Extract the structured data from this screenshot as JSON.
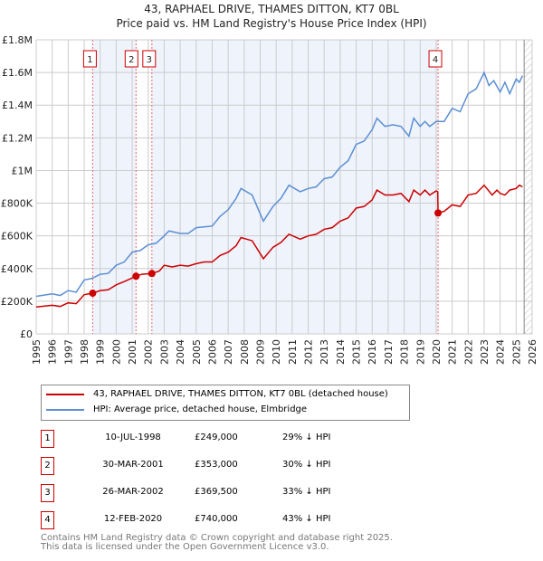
{
  "title_line1": "43, RAPHAEL DRIVE, THAMES DITTON, KT7 0BL",
  "title_line2": "Price paid vs. HM Land Registry's House Price Index (HPI)",
  "chart_data": {
    "type": "line",
    "title": "43, RAPHAEL DRIVE, THAMES DITTON, KT7 0BL — Price paid vs. HM Land Registry's House Price Index (HPI)",
    "xlim": [
      1995,
      2026
    ],
    "ylim": [
      0,
      1800000
    ],
    "yticks": [
      0,
      200000,
      400000,
      600000,
      800000,
      1000000,
      1200000,
      1400000,
      1600000,
      1800000
    ],
    "ytick_labels": [
      "£0",
      "£200K",
      "£400K",
      "£600K",
      "£800K",
      "£1M",
      "£1.2M",
      "£1.4M",
      "£1.6M",
      "£1.8M"
    ],
    "xticks": [
      1995,
      1996,
      1997,
      1998,
      1999,
      2000,
      2001,
      2002,
      2003,
      2004,
      2005,
      2006,
      2007,
      2008,
      2009,
      2010,
      2011,
      2012,
      2013,
      2014,
      2015,
      2016,
      2017,
      2018,
      2019,
      2020,
      2021,
      2022,
      2023,
      2024,
      2025,
      2026
    ],
    "grid": true,
    "series": [
      {
        "name": "43, RAPHAEL DRIVE, THAMES DITTON, KT7 0BL (detached house)",
        "color": "#cc0000",
        "x": [
          1995,
          1996,
          1996.5,
          1997,
          1997.5,
          1998,
          1998.53,
          1999,
          1999.5,
          2000,
          2000.5,
          2001.24,
          2001.6,
          2002.23,
          2002.7,
          2003,
          2003.5,
          2004,
          2004.5,
          2005,
          2005.5,
          2006,
          2006.5,
          2007,
          2007.5,
          2007.8,
          2008.5,
          2009.2,
          2009.8,
          2010.3,
          2010.8,
          2011.5,
          2012,
          2012.5,
          2013,
          2013.5,
          2014,
          2014.5,
          2015,
          2015.5,
          2016,
          2016.3,
          2016.8,
          2017.3,
          2017.8,
          2018.3,
          2018.6,
          2019,
          2019.3,
          2019.6,
          2020,
          2020.1,
          2020.12,
          2020.5,
          2021,
          2021.5,
          2022,
          2022.5,
          2023,
          2023.5,
          2023.8,
          2024,
          2024.3,
          2024.6,
          2025,
          2025.2,
          2025.4
        ],
        "y": [
          165000,
          175000,
          168000,
          190000,
          185000,
          240000,
          249000,
          265000,
          270000,
          300000,
          320000,
          353000,
          365000,
          369500,
          385000,
          420000,
          410000,
          420000,
          415000,
          430000,
          440000,
          440000,
          480000,
          500000,
          540000,
          590000,
          570000,
          460000,
          530000,
          560000,
          610000,
          580000,
          600000,
          610000,
          640000,
          650000,
          690000,
          710000,
          770000,
          780000,
          820000,
          880000,
          850000,
          850000,
          860000,
          810000,
          880000,
          850000,
          880000,
          850000,
          875000,
          870000,
          740000,
          750000,
          790000,
          780000,
          850000,
          860000,
          910000,
          850000,
          880000,
          860000,
          850000,
          880000,
          890000,
          910000,
          900000
        ]
      },
      {
        "name": "HPI: Average price, detached house, Elmbridge",
        "color": "#5b8fd4",
        "x": [
          1995,
          1996,
          1996.5,
          1997,
          1997.5,
          1998,
          1998.5,
          1999,
          1999.5,
          2000,
          2000.5,
          2001,
          2001.5,
          2002,
          2002.5,
          2003,
          2003.3,
          2004,
          2004.5,
          2005,
          2005.5,
          2006,
          2006.5,
          2007,
          2007.5,
          2007.8,
          2008.5,
          2009.2,
          2009.8,
          2010.3,
          2010.8,
          2011.5,
          2012,
          2012.5,
          2013,
          2013.5,
          2014,
          2014.5,
          2015,
          2015.5,
          2016,
          2016.3,
          2016.8,
          2017.3,
          2017.8,
          2018.3,
          2018.6,
          2019,
          2019.3,
          2019.6,
          2020,
          2020.5,
          2021,
          2021.5,
          2022,
          2022.5,
          2023,
          2023.3,
          2023.6,
          2024,
          2024.3,
          2024.6,
          2025,
          2025.2,
          2025.4
        ],
        "y": [
          230000,
          245000,
          235000,
          265000,
          255000,
          330000,
          340000,
          365000,
          370000,
          420000,
          440000,
          500000,
          510000,
          545000,
          555000,
          600000,
          630000,
          615000,
          615000,
          650000,
          655000,
          660000,
          720000,
          760000,
          830000,
          890000,
          850000,
          690000,
          780000,
          830000,
          910000,
          870000,
          890000,
          900000,
          950000,
          960000,
          1020000,
          1060000,
          1160000,
          1180000,
          1250000,
          1320000,
          1270000,
          1280000,
          1270000,
          1210000,
          1320000,
          1270000,
          1300000,
          1270000,
          1300000,
          1300000,
          1380000,
          1360000,
          1470000,
          1500000,
          1600000,
          1520000,
          1550000,
          1480000,
          1540000,
          1470000,
          1560000,
          1540000,
          1580000
        ]
      }
    ],
    "sales": [
      {
        "n": "1",
        "x": 1998.53,
        "y": 249000
      },
      {
        "n": "2",
        "x": 2001.24,
        "y": 353000
      },
      {
        "n": "3",
        "x": 2002.23,
        "y": 369500
      },
      {
        "n": "4",
        "x": 2020.12,
        "y": 740000
      }
    ],
    "shaded_ranges": [
      [
        1998.53,
        2001.24
      ],
      [
        2002.23,
        2020.12
      ]
    ],
    "hatched_from": 2025.5
  },
  "legend": [
    {
      "label": "43, RAPHAEL DRIVE, THAMES DITTON, KT7 0BL (detached house)",
      "color": "#cc0000"
    },
    {
      "label": "HPI: Average price, detached house, Elmbridge",
      "color": "#5b8fd4"
    }
  ],
  "transactions": [
    {
      "n": "1",
      "date": "10-JUL-1998",
      "price": "£249,000",
      "hpi": "29% ↓ HPI"
    },
    {
      "n": "2",
      "date": "30-MAR-2001",
      "price": "£353,000",
      "hpi": "30% ↓ HPI"
    },
    {
      "n": "3",
      "date": "26-MAR-2002",
      "price": "£369,500",
      "hpi": "33% ↓ HPI"
    },
    {
      "n": "4",
      "date": "12-FEB-2020",
      "price": "£740,000",
      "hpi": "43% ↓ HPI"
    }
  ],
  "footer_line1": "Contains HM Land Registry data © Crown copyright and database right 2025.",
  "footer_line2": "This data is licensed under the Open Government Licence v3.0."
}
